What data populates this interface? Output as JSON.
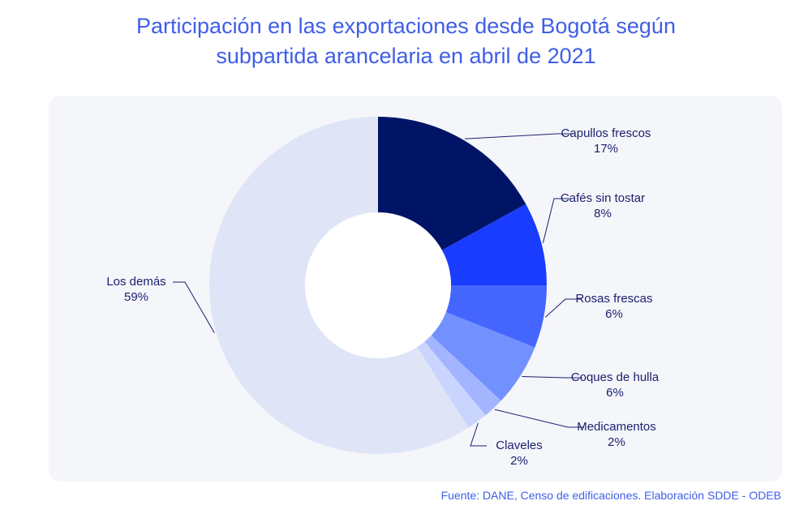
{
  "title": {
    "line1": "Participación en las exportaciones desde Bogotá según",
    "line2": "subpartida arancelaria en abril de 2021"
  },
  "source": "Fuente: DANE, Censo de edificaciones. Elaboración SDDE - ODEB",
  "chart_data": {
    "type": "pie",
    "donut": true,
    "slices": [
      {
        "label": "Capullos frescos",
        "value": 17,
        "value_label": "17%",
        "color": "#001466"
      },
      {
        "label": "Cafés sin tostar",
        "value": 8,
        "value_label": "8%",
        "color": "#1a3cff"
      },
      {
        "label": "Rosas frescas",
        "value": 6,
        "value_label": "6%",
        "color": "#4466ff"
      },
      {
        "label": "Coques de hulla",
        "value": 6,
        "value_label": "6%",
        "color": "#7390ff"
      },
      {
        "label": "Medicamentos",
        "value": 2,
        "value_label": "2%",
        "color": "#a3b5ff"
      },
      {
        "label": "Claveles",
        "value": 2,
        "value_label": "2%",
        "color": "#cad5ff"
      },
      {
        "label": "Los demás",
        "value": 59,
        "value_label": "59%",
        "color": "#dfe5f7"
      }
    ]
  }
}
